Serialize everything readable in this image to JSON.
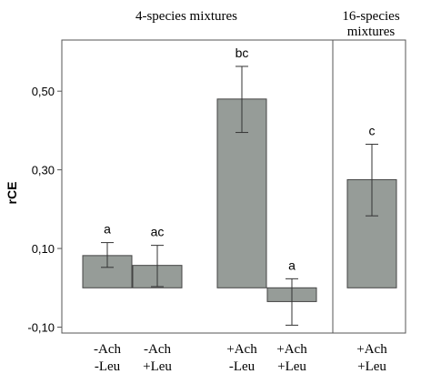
{
  "chart_data": {
    "type": "bar",
    "group_titles": [
      {
        "line1": "4-species mixtures",
        "line2": ""
      },
      {
        "line1": "16-species",
        "line2": "mixtures"
      }
    ],
    "ylabel": "rCE",
    "ylim": [
      -0.115,
      0.63
    ],
    "yticks": [
      -0.1,
      0.1,
      0.3,
      0.5
    ],
    "ytick_labels": [
      "-0,10",
      "0,10",
      "0,30",
      "0,50"
    ],
    "bar_color": "#969c98",
    "bars": [
      {
        "line1": "-Ach",
        "line2": "-Leu",
        "value": 0.082,
        "err_low": 0.052,
        "err_high": 0.115,
        "letter": "a",
        "group": 0
      },
      {
        "line1": "-Ach",
        "line2": "+Leu",
        "value": 0.057,
        "err_low": 0.003,
        "err_high": 0.108,
        "letter": "ac",
        "group": 0
      },
      {
        "line1": "+Ach",
        "line2": "-Leu",
        "value": 0.48,
        "err_low": 0.395,
        "err_high": 0.563,
        "letter": "bc",
        "group": 0
      },
      {
        "line1": "+Ach",
        "line2": "+Leu",
        "value": -0.035,
        "err_low": -0.095,
        "err_high": 0.023,
        "letter": "a",
        "group": 0
      },
      {
        "line1": "+Ach",
        "line2": "+Leu",
        "value": 0.275,
        "err_low": 0.183,
        "err_high": 0.365,
        "letter": "c",
        "group": 1
      }
    ]
  }
}
